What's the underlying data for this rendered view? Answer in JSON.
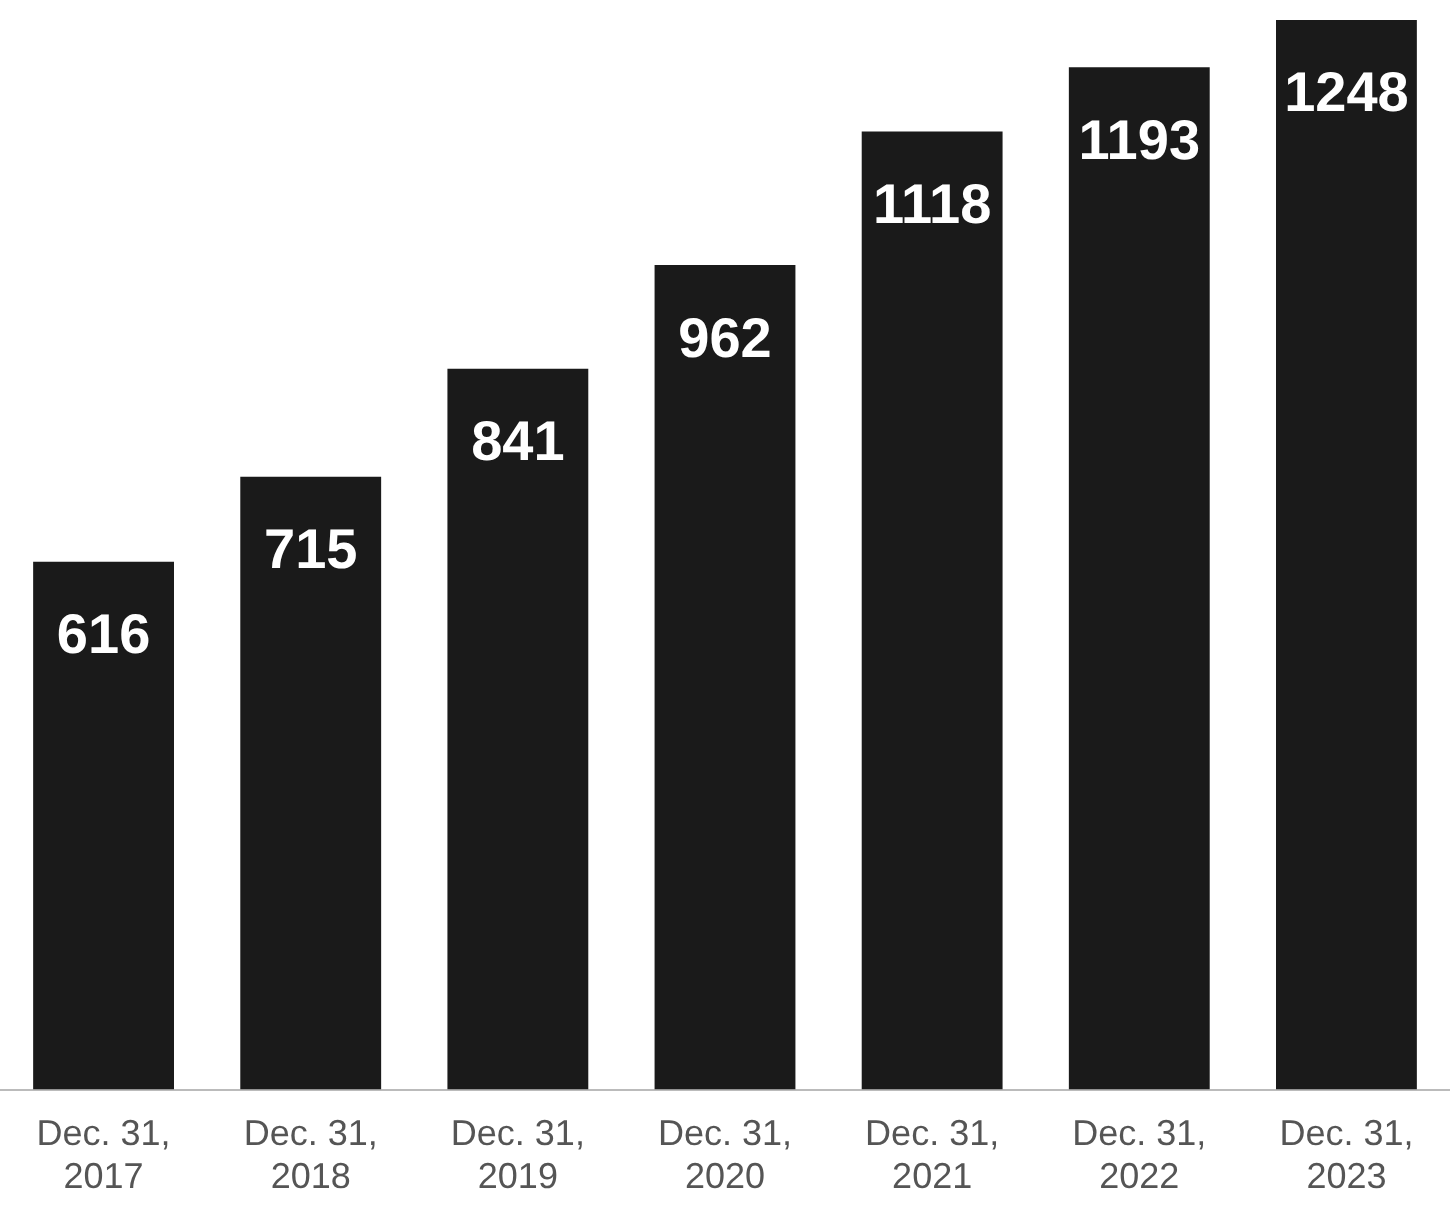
{
  "chart_data": {
    "type": "bar",
    "categories": [
      "Dec. 31, 2017",
      "Dec. 31, 2018",
      "Dec. 31, 2019",
      "Dec. 31, 2020",
      "Dec. 31, 2021",
      "Dec. 31, 2022",
      "Dec. 31, 2023"
    ],
    "values": [
      616,
      715,
      841,
      962,
      1118,
      1193,
      1248
    ],
    "color": "#1a1a1a",
    "data_labels": true,
    "grid": false,
    "legend": false
  }
}
